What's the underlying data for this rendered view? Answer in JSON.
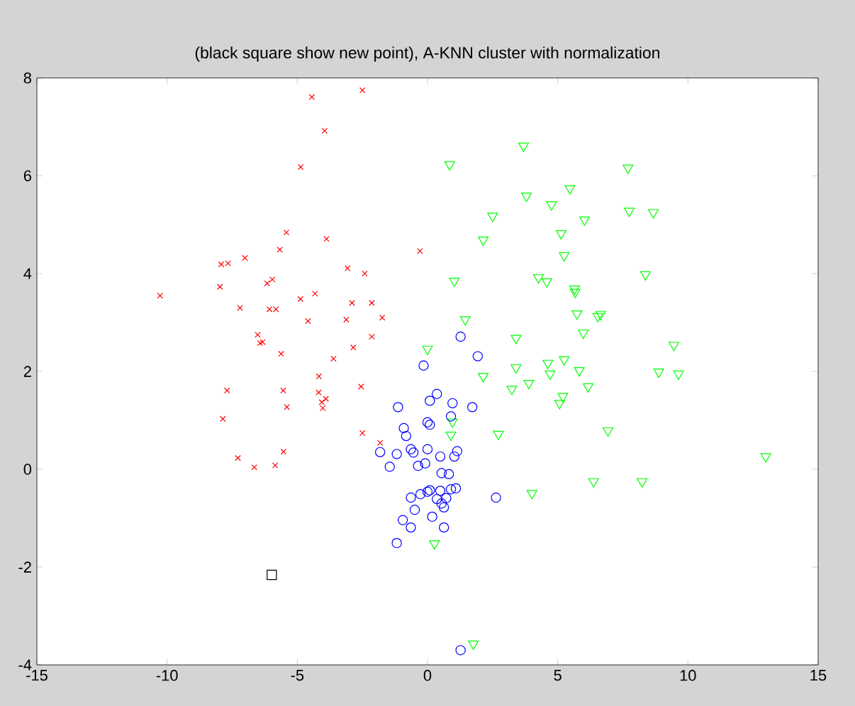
{
  "chart_data": {
    "type": "scatter",
    "title": "(black square show new point), A-KNN cluster with normalization",
    "xlim": [
      -15,
      15
    ],
    "ylim": [
      -4,
      8
    ],
    "xticks": [
      -15,
      -10,
      -5,
      0,
      5,
      10,
      15
    ],
    "yticks": [
      -4,
      -2,
      0,
      2,
      4,
      6,
      8
    ],
    "grid": false,
    "series": [
      {
        "color": "#ff0000",
        "marker": "cross",
        "x": [
          -4.44,
          -2.5,
          -3.95,
          -4.87,
          -5.42,
          -3.88,
          -5.67,
          -0.29,
          -7.92,
          -7.66,
          -7.01,
          -3.07,
          -2.41,
          -10.27,
          -7.97,
          -6.16,
          -5.96,
          -4.88,
          -4.32,
          -7.2,
          -6.07,
          -5.82,
          -2.9,
          -2.14,
          -4.59,
          -3.12,
          -1.74,
          -6.52,
          -6.43,
          -6.33,
          -2.14,
          -2.85,
          -5.62,
          -3.61,
          -4.17,
          -7.7,
          -5.54,
          -4.18,
          -3.9,
          -4.06,
          -4.02,
          -5.4,
          -2.55,
          -7.86,
          -2.5,
          -1.82,
          -7.28,
          -5.53,
          -6.65,
          -5.85
        ],
        "values": [
          7.61,
          7.75,
          6.92,
          6.18,
          4.84,
          4.71,
          4.49,
          4.46,
          4.19,
          4.21,
          4.32,
          4.11,
          4.0,
          3.55,
          3.73,
          3.8,
          3.88,
          3.48,
          3.59,
          3.3,
          3.27,
          3.27,
          3.4,
          3.4,
          3.03,
          3.06,
          3.1,
          2.75,
          2.58,
          2.6,
          2.71,
          2.49,
          2.36,
          2.26,
          1.9,
          1.61,
          1.61,
          1.57,
          1.44,
          1.37,
          1.25,
          1.27,
          1.69,
          1.03,
          0.74,
          0.54,
          0.23,
          0.36,
          0.04,
          0.08
        ]
      },
      {
        "color": "#00ff00",
        "marker": "triangle",
        "x": [
          3.69,
          0.85,
          7.7,
          3.8,
          5.47,
          4.76,
          7.75,
          8.67,
          2.5,
          6.03,
          5.13,
          2.14,
          5.25,
          1.03,
          4.26,
          4.58,
          8.37,
          5.65,
          5.67,
          5.74,
          6.54,
          6.65,
          1.45,
          5.98,
          3.4,
          9.46,
          0.0,
          3.4,
          2.14,
          4.62,
          5.25,
          4.71,
          5.83,
          6.17,
          8.88,
          9.64,
          3.24,
          3.89,
          5.2,
          5.07,
          0.96,
          0.9,
          2.72,
          6.93,
          12.99,
          6.38,
          8.24,
          4.01,
          0.27,
          1.76
        ],
        "values": [
          6.61,
          6.23,
          6.16,
          5.59,
          5.74,
          5.41,
          5.28,
          5.25,
          5.18,
          5.1,
          4.82,
          4.69,
          4.37,
          3.85,
          3.92,
          3.84,
          3.98,
          3.69,
          3.62,
          3.18,
          3.13,
          3.17,
          3.06,
          2.79,
          2.68,
          2.54,
          2.46,
          2.08,
          1.9,
          2.17,
          2.24,
          1.95,
          2.02,
          1.69,
          1.99,
          1.95,
          1.64,
          1.76,
          1.49,
          1.35,
          0.97,
          0.7,
          0.72,
          0.79,
          0.26,
          -0.25,
          -0.25,
          -0.49,
          -1.52,
          -3.57
        ]
      },
      {
        "color": "#0000ff",
        "marker": "circle",
        "x": [
          1.27,
          1.93,
          -0.15,
          0.36,
          0.09,
          0.96,
          1.72,
          -1.13,
          0.0,
          0.09,
          0.9,
          -0.91,
          -0.82,
          1.14,
          1.03,
          -1.82,
          -1.18,
          -0.64,
          -0.54,
          0.0,
          0.49,
          -1.45,
          -0.36,
          -0.09,
          0.54,
          0.82,
          0.9,
          1.09,
          0.09,
          0.49,
          2.63,
          -0.64,
          -0.27,
          0.0,
          0.36,
          0.72,
          0.54,
          0.63,
          -0.49,
          -0.95,
          -0.64,
          0.18,
          0.63,
          -1.18,
          1.27
        ],
        "values": [
          2.71,
          2.31,
          2.12,
          1.54,
          1.4,
          1.35,
          1.27,
          1.27,
          0.96,
          0.91,
          1.08,
          0.84,
          0.68,
          0.37,
          0.26,
          0.35,
          0.31,
          0.41,
          0.34,
          0.41,
          0.26,
          0.05,
          0.07,
          0.12,
          -0.08,
          -0.1,
          -0.41,
          -0.39,
          -0.43,
          -0.44,
          -0.58,
          -0.58,
          -0.51,
          -0.46,
          -0.61,
          -0.59,
          -0.7,
          -0.78,
          -0.83,
          -1.04,
          -1.19,
          -0.97,
          -1.19,
          -1.51,
          -3.7
        ]
      },
      {
        "color": "#000000",
        "marker": "square",
        "x": [
          -5.98
        ],
        "values": [
          -2.16
        ]
      }
    ]
  }
}
